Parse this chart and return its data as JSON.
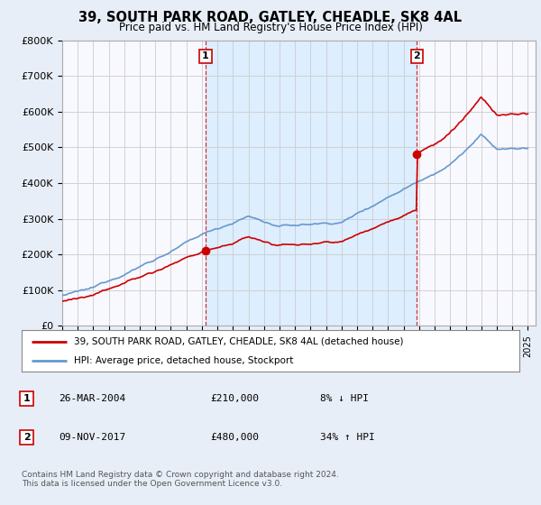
{
  "title": "39, SOUTH PARK ROAD, GATLEY, CHEADLE, SK8 4AL",
  "subtitle": "Price paid vs. HM Land Registry's House Price Index (HPI)",
  "ylim": [
    0,
    800000
  ],
  "yticks": [
    0,
    100000,
    200000,
    300000,
    400000,
    500000,
    600000,
    700000,
    800000
  ],
  "ytick_labels": [
    "£0",
    "£100K",
    "£200K",
    "£300K",
    "£400K",
    "£500K",
    "£600K",
    "£700K",
    "£800K"
  ],
  "sale1_year": 2004.23,
  "sale1_price": 210000,
  "sale1_label": "1",
  "sale1_date": "26-MAR-2004",
  "sale1_pct": "8% ↓ HPI",
  "sale2_year": 2017.86,
  "sale2_price": 480000,
  "sale2_label": "2",
  "sale2_date": "09-NOV-2017",
  "sale2_pct": "34% ↑ HPI",
  "hpi_color": "#6699cc",
  "price_color": "#cc0000",
  "shade_color": "#ddeeff",
  "legend_line1": "39, SOUTH PARK ROAD, GATLEY, CHEADLE, SK8 4AL (detached house)",
  "legend_line2": "HPI: Average price, detached house, Stockport",
  "footer": "Contains HM Land Registry data © Crown copyright and database right 2024.\nThis data is licensed under the Open Government Licence v3.0.",
  "bg_color": "#e8eef8",
  "plot_bg": "#f8f8ff",
  "grid_color": "#cccccc",
  "xmin": 1995,
  "xmax": 2025.5
}
